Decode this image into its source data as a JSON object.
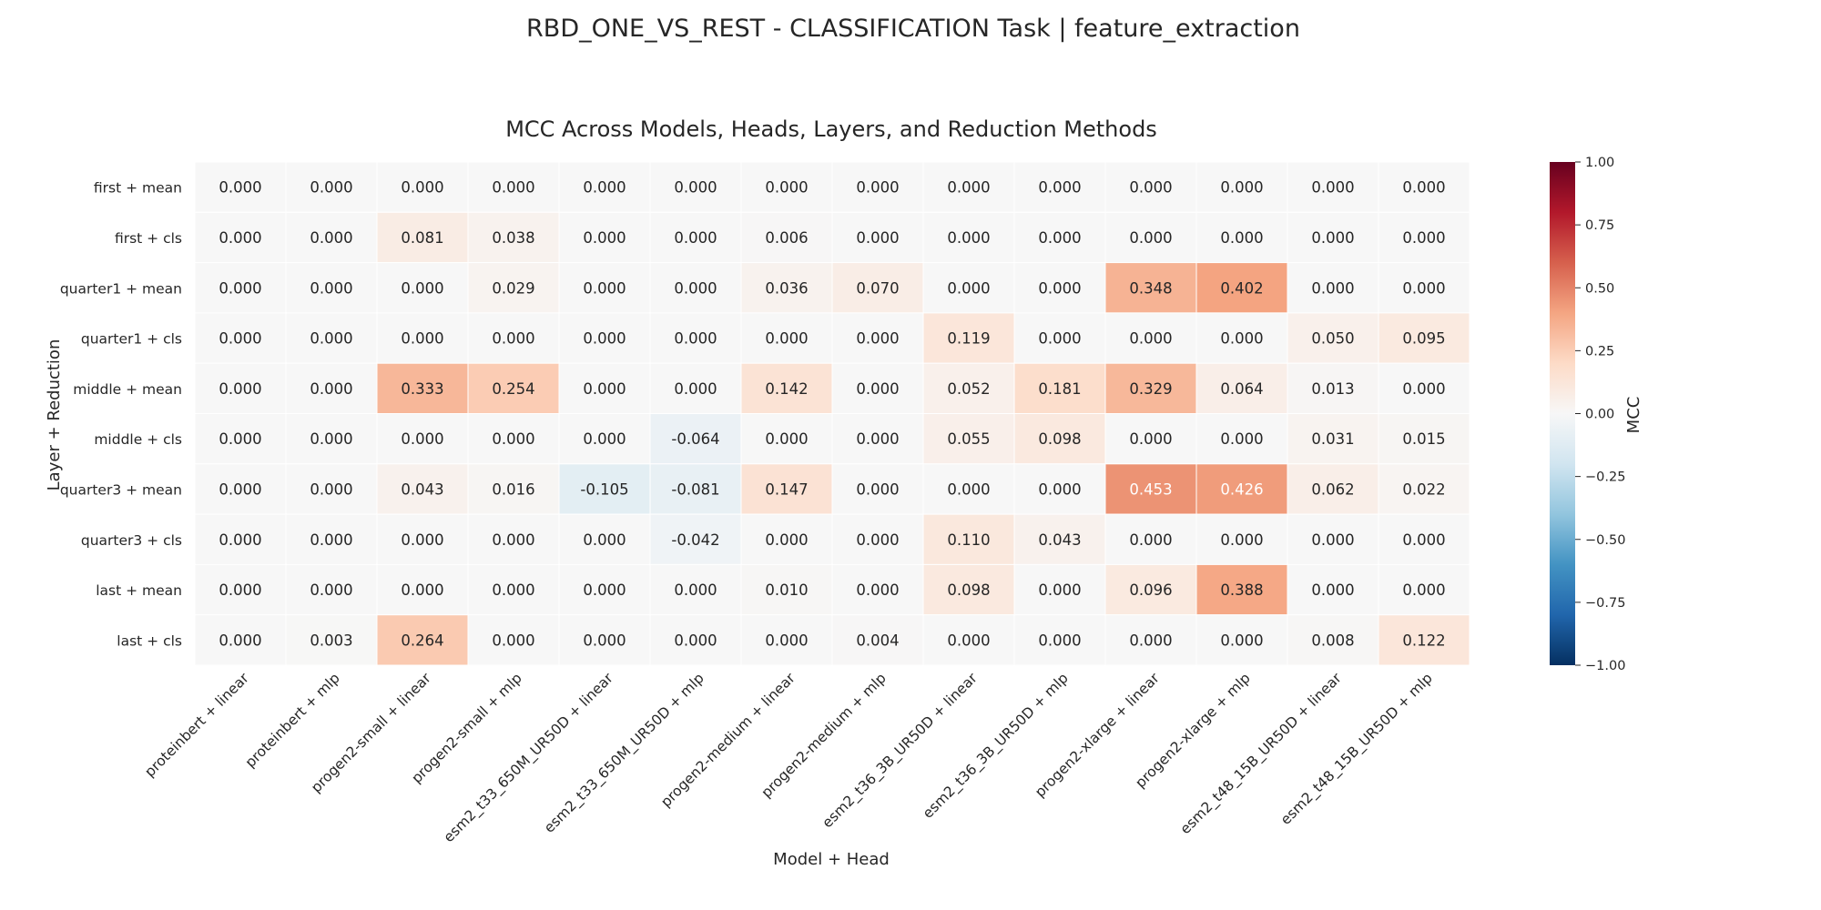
{
  "chart_data": {
    "type": "heatmap",
    "suptitle": "RBD_ONE_VS_REST - CLASSIFICATION Task | feature_extraction",
    "title": "MCC Across Models, Heads, Layers, and Reduction Methods",
    "xlabel": "Model + Head",
    "ylabel": "Layer + Reduction",
    "colorbar_label": "MCC",
    "colormap": "RdBu_r",
    "vmin": -1.0,
    "vmax": 1.0,
    "colorbar_ticks": [
      "1.00",
      "0.75",
      "0.50",
      "0.25",
      "0.00",
      "−0.25",
      "−0.50",
      "−0.75",
      "−1.00"
    ],
    "columns": [
      "proteinbert + linear",
      "proteinbert + mlp",
      "progen2-small + linear",
      "progen2-small + mlp",
      "esm2_t33_650M_UR50D + linear",
      "esm2_t33_650M_UR50D + mlp",
      "progen2-medium + linear",
      "progen2-medium + mlp",
      "esm2_t36_3B_UR50D + linear",
      "esm2_t36_3B_UR50D + mlp",
      "progen2-xlarge + linear",
      "progen2-xlarge + mlp",
      "esm2_t48_15B_UR50D + linear",
      "esm2_t48_15B_UR50D + mlp"
    ],
    "rows": [
      "first + mean",
      "first + cls",
      "quarter1 + mean",
      "quarter1 + cls",
      "middle + mean",
      "middle + cls",
      "quarter3 + mean",
      "quarter3 + cls",
      "last + mean",
      "last + cls"
    ],
    "values": [
      [
        0.0,
        0.0,
        0.0,
        0.0,
        0.0,
        0.0,
        0.0,
        0.0,
        0.0,
        0.0,
        0.0,
        0.0,
        0.0,
        0.0
      ],
      [
        0.0,
        0.0,
        0.081,
        0.038,
        0.0,
        0.0,
        0.006,
        0.0,
        0.0,
        0.0,
        0.0,
        0.0,
        0.0,
        0.0
      ],
      [
        0.0,
        0.0,
        0.0,
        0.029,
        0.0,
        0.0,
        0.036,
        0.07,
        0.0,
        0.0,
        0.348,
        0.402,
        0.0,
        0.0
      ],
      [
        0.0,
        0.0,
        0.0,
        0.0,
        0.0,
        0.0,
        0.0,
        0.0,
        0.119,
        0.0,
        0.0,
        0.0,
        0.05,
        0.095
      ],
      [
        0.0,
        0.0,
        0.333,
        0.254,
        0.0,
        0.0,
        0.142,
        0.0,
        0.052,
        0.181,
        0.329,
        0.064,
        0.013,
        0.0
      ],
      [
        0.0,
        0.0,
        0.0,
        0.0,
        0.0,
        -0.064,
        0.0,
        0.0,
        0.055,
        0.098,
        0.0,
        0.0,
        0.031,
        0.015
      ],
      [
        0.0,
        0.0,
        0.043,
        0.016,
        -0.105,
        -0.081,
        0.147,
        0.0,
        0.0,
        0.0,
        0.453,
        0.426,
        0.062,
        0.022
      ],
      [
        0.0,
        0.0,
        0.0,
        0.0,
        0.0,
        -0.042,
        0.0,
        0.0,
        0.11,
        0.043,
        0.0,
        0.0,
        0.0,
        0.0
      ],
      [
        0.0,
        0.0,
        0.0,
        0.0,
        0.0,
        0.0,
        0.01,
        0.0,
        0.098,
        0.0,
        0.096,
        0.388,
        0.0,
        0.0
      ],
      [
        0.0,
        0.003,
        0.264,
        0.0,
        0.0,
        0.0,
        0.0,
        0.004,
        0.0,
        0.0,
        0.0,
        0.0,
        0.008,
        0.122
      ]
    ]
  }
}
